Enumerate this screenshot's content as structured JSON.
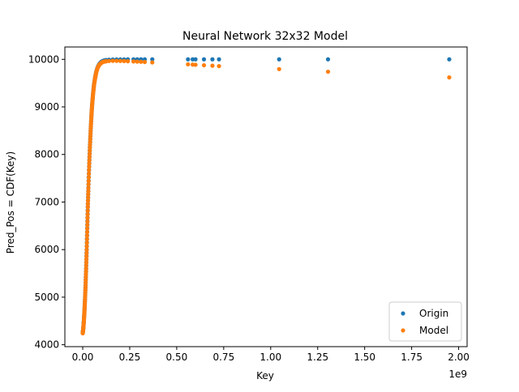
{
  "chart_data": {
    "type": "scatter",
    "title": "Neural Network 32x32 Model",
    "xlabel": "Key",
    "ylabel": "Pred_Pos = CDF(Key)",
    "x_offset_label": "1e9",
    "xlim": [
      -95000000,
      2045000000
    ],
    "ylim": [
      3960,
      10260
    ],
    "x_ticks": [
      0,
      250000000,
      500000000,
      750000000,
      1000000000,
      1250000000,
      1500000000,
      1750000000,
      2000000000
    ],
    "x_tick_labels": [
      "0.00",
      "0.25",
      "0.50",
      "0.75",
      "1.00",
      "1.25",
      "1.50",
      "1.75",
      "2.00"
    ],
    "y_ticks": [
      4000,
      5000,
      6000,
      7000,
      8000,
      9000,
      10000
    ],
    "y_tick_labels": [
      "4000",
      "5000",
      "6000",
      "7000",
      "8000",
      "9000",
      "10000"
    ],
    "legend_position": "lower right",
    "series": [
      {
        "name": "Origin",
        "color": "#1f77b4",
        "points": [
          [
            0,
            4250
          ],
          [
            3000000,
            4350
          ],
          [
            6000000,
            4500
          ],
          [
            9000000,
            4700
          ],
          [
            12000000,
            4950
          ],
          [
            15000000,
            5250
          ],
          [
            18000000,
            5600
          ],
          [
            21000000,
            6000
          ],
          [
            24000000,
            6450
          ],
          [
            27000000,
            6900
          ],
          [
            30000000,
            7300
          ],
          [
            34000000,
            7750
          ],
          [
            38000000,
            8150
          ],
          [
            42000000,
            8500
          ],
          [
            46000000,
            8800
          ],
          [
            50000000,
            9050
          ],
          [
            55000000,
            9280
          ],
          [
            60000000,
            9470
          ],
          [
            66000000,
            9620
          ],
          [
            72000000,
            9740
          ],
          [
            80000000,
            9840
          ],
          [
            90000000,
            9910
          ],
          [
            100000000,
            9950
          ],
          [
            110000000,
            9970
          ],
          [
            125000000,
            9985
          ],
          [
            140000000,
            9992
          ],
          [
            160000000,
            9996
          ],
          [
            180000000,
            9998
          ],
          [
            200000000,
            9999
          ],
          [
            220000000,
            9999
          ],
          [
            240000000,
            10000
          ],
          [
            270000000,
            10000
          ],
          [
            290000000,
            10000
          ],
          [
            310000000,
            10000
          ],
          [
            330000000,
            10000
          ],
          [
            370000000,
            10000
          ],
          [
            560000000,
            10000
          ],
          [
            585000000,
            10000
          ],
          [
            600000000,
            10000
          ],
          [
            645000000,
            10000
          ],
          [
            690000000,
            10000
          ],
          [
            725000000,
            10000
          ],
          [
            1045000000,
            10000
          ],
          [
            1305000000,
            10000
          ],
          [
            1950000000,
            10000
          ]
        ]
      },
      {
        "name": "Model",
        "color": "#ff7f0e",
        "points": [
          [
            0,
            4240
          ],
          [
            3000000,
            4340
          ],
          [
            6000000,
            4490
          ],
          [
            9000000,
            4690
          ],
          [
            12000000,
            4940
          ],
          [
            15000000,
            5240
          ],
          [
            18000000,
            5590
          ],
          [
            21000000,
            5990
          ],
          [
            24000000,
            6440
          ],
          [
            27000000,
            6890
          ],
          [
            30000000,
            7290
          ],
          [
            34000000,
            7740
          ],
          [
            38000000,
            8140
          ],
          [
            42000000,
            8490
          ],
          [
            46000000,
            8790
          ],
          [
            50000000,
            9040
          ],
          [
            55000000,
            9270
          ],
          [
            60000000,
            9460
          ],
          [
            66000000,
            9610
          ],
          [
            72000000,
            9730
          ],
          [
            80000000,
            9830
          ],
          [
            90000000,
            9895
          ],
          [
            100000000,
            9930
          ],
          [
            110000000,
            9950
          ],
          [
            125000000,
            9960
          ],
          [
            140000000,
            9965
          ],
          [
            160000000,
            9968
          ],
          [
            180000000,
            9968
          ],
          [
            200000000,
            9966
          ],
          [
            220000000,
            9964
          ],
          [
            240000000,
            9960
          ],
          [
            270000000,
            9956
          ],
          [
            290000000,
            9952
          ],
          [
            310000000,
            9948
          ],
          [
            330000000,
            9944
          ],
          [
            370000000,
            9935
          ],
          [
            560000000,
            9895
          ],
          [
            585000000,
            9890
          ],
          [
            600000000,
            9886
          ],
          [
            645000000,
            9876
          ],
          [
            690000000,
            9866
          ],
          [
            725000000,
            9858
          ],
          [
            1045000000,
            9795
          ],
          [
            1305000000,
            9740
          ],
          [
            1950000000,
            9620
          ]
        ]
      }
    ]
  }
}
